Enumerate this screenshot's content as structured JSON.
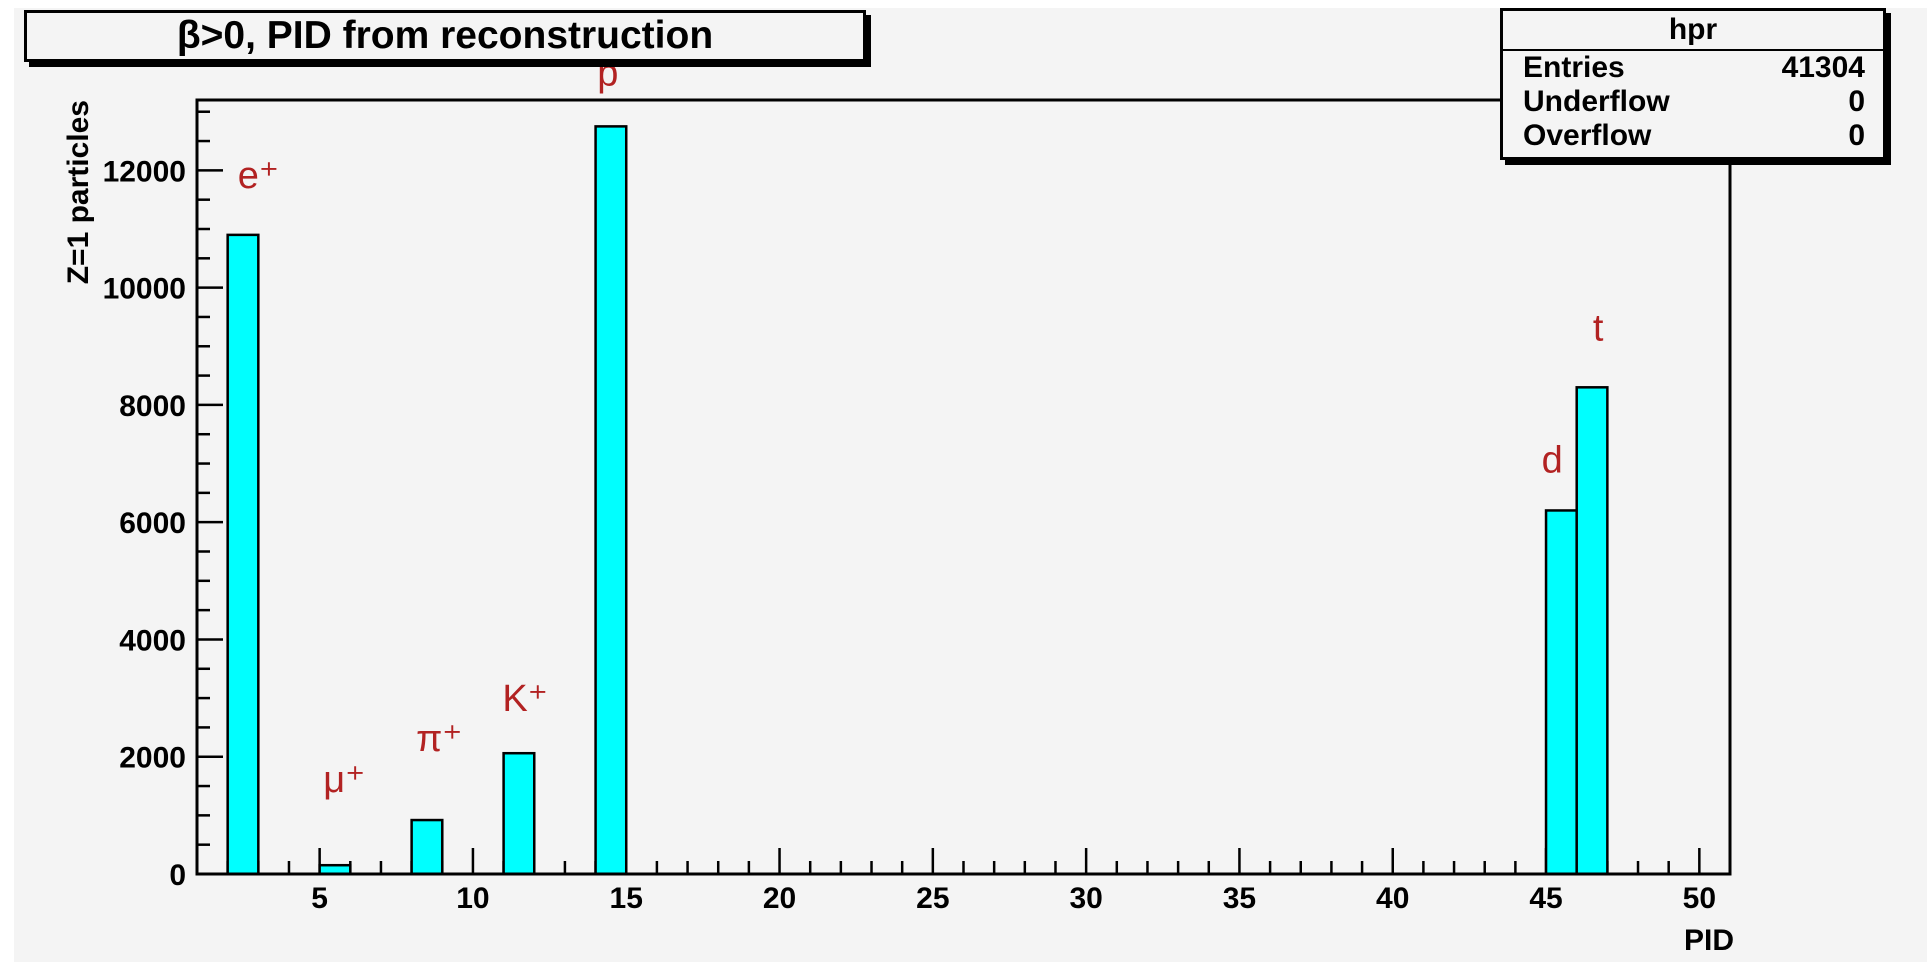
{
  "chart_data": {
    "type": "bar",
    "title": "β>0, PID from reconstruction",
    "xlabel": "PID",
    "ylabel": "Z=1 particles",
    "xlim": [
      1,
      51
    ],
    "ylim": [
      0,
      13200
    ],
    "x_ticks": [
      5,
      10,
      15,
      20,
      25,
      30,
      35,
      40,
      45,
      50
    ],
    "y_ticks": [
      0,
      2000,
      4000,
      6000,
      8000,
      10000,
      12000
    ],
    "bin_width": 1,
    "bars": [
      {
        "x": 2,
        "value": 10900
      },
      {
        "x": 5,
        "value": 150
      },
      {
        "x": 8,
        "value": 920
      },
      {
        "x": 11,
        "value": 2060
      },
      {
        "x": 14,
        "value": 12750
      },
      {
        "x": 45,
        "value": 6200
      },
      {
        "x": 46,
        "value": 8300
      }
    ],
    "annotations": [
      {
        "text": "e⁺",
        "x": 3.0,
        "y": 11700
      },
      {
        "text": "μ⁺",
        "x": 5.8,
        "y": 1400
      },
      {
        "text": "π⁺",
        "x": 8.9,
        "y": 2100
      },
      {
        "text": "K⁺",
        "x": 11.7,
        "y": 2780
      },
      {
        "text": "p",
        "x": 14.4,
        "y": 13450
      },
      {
        "text": "d",
        "x": 45.2,
        "y": 6850
      },
      {
        "text": "t",
        "x": 46.7,
        "y": 9100
      }
    ],
    "colors": {
      "bar_fill": "#00ffff",
      "annotation": "#b22222",
      "frame_bg": "#f4f4f4"
    },
    "stats": {
      "name": "hpr",
      "rows": [
        {
          "label": "Entries",
          "value": "41304"
        },
        {
          "label": "Underflow",
          "value": "0"
        },
        {
          "label": "Overflow",
          "value": "0"
        }
      ]
    }
  }
}
